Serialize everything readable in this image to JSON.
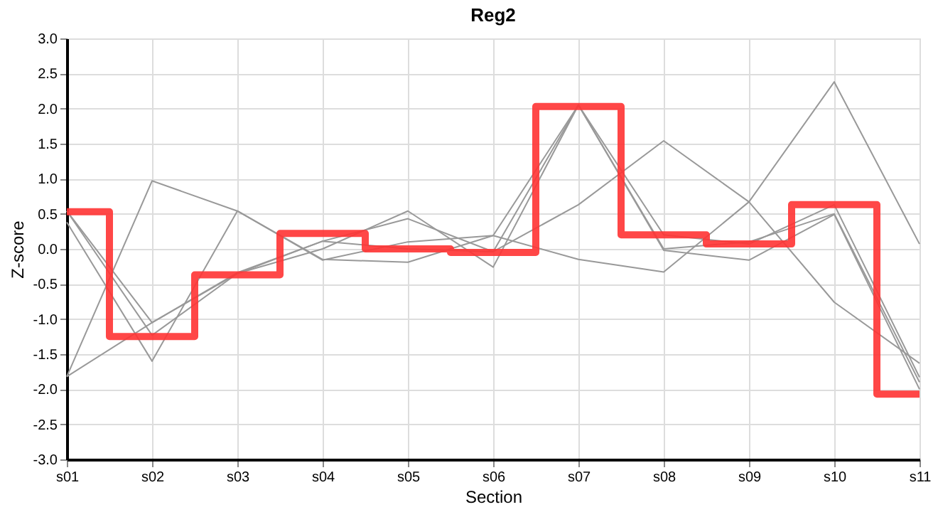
{
  "chart_data": {
    "type": "line",
    "title": "Reg2",
    "xlabel": "Section",
    "ylabel": "Z-score",
    "categories": [
      "s01",
      "s02",
      "s03",
      "s04",
      "s05",
      "s06",
      "s07",
      "s08",
      "s09",
      "s10",
      "s11"
    ],
    "series": [
      {
        "color": "#999999",
        "values": [
          -1.82,
          0.97,
          0.54,
          -0.15,
          -0.19,
          0.19,
          -0.15,
          -0.33,
          0.67,
          2.38,
          0.07
        ]
      },
      {
        "color": "#999999",
        "values": [
          -1.82,
          -1.05,
          -0.34,
          0.11,
          0.43,
          -0.04,
          0.63,
          1.54,
          0.67,
          -0.76,
          -1.63
        ]
      },
      {
        "color": "#999999",
        "values": [
          0.54,
          -1.23,
          -0.35,
          0.0,
          0.54,
          -0.26,
          2.05,
          0.2,
          0.07,
          0.63,
          -1.83
        ]
      },
      {
        "color": "#999999",
        "values": [
          0.38,
          -1.6,
          0.54,
          -0.16,
          0.1,
          0.19,
          2.05,
          -0.02,
          -0.16,
          0.49,
          -2.0
        ]
      },
      {
        "color": "#999999",
        "values": [
          0.54,
          -1.05,
          -0.35,
          0.11,
          0.0,
          -0.04,
          2.05,
          0.0,
          0.1,
          0.5,
          -1.9
        ]
      },
      {
        "type": "step",
        "color": "#ff3333",
        "values": [
          0.53,
          -1.25,
          -0.37,
          0.22,
          0.0,
          -0.05,
          2.03,
          0.2,
          0.07,
          0.63,
          -2.07
        ]
      }
    ],
    "ylim": [
      -3,
      3
    ],
    "yticks": [
      {
        "value": -3,
        "label": "-3.0"
      },
      {
        "value": -2.5,
        "label": "-2.5"
      },
      {
        "value": -2,
        "label": "-2.0"
      },
      {
        "value": -1.5,
        "label": "-1.5"
      },
      {
        "value": -1,
        "label": "-1.0"
      },
      {
        "value": -0.5,
        "label": "-0.5"
      },
      {
        "value": 0,
        "label": "0.0"
      },
      {
        "value": 0.5,
        "label": "0.5"
      },
      {
        "value": 1,
        "label": "1.0"
      },
      {
        "value": 1.5,
        "label": "1.5"
      },
      {
        "value": 2,
        "label": "2.0"
      },
      {
        "value": 2.5,
        "label": "2.5"
      },
      {
        "value": 3,
        "label": "3.0"
      }
    ],
    "grid": true,
    "marker": "none",
    "line_style": "solid"
  }
}
